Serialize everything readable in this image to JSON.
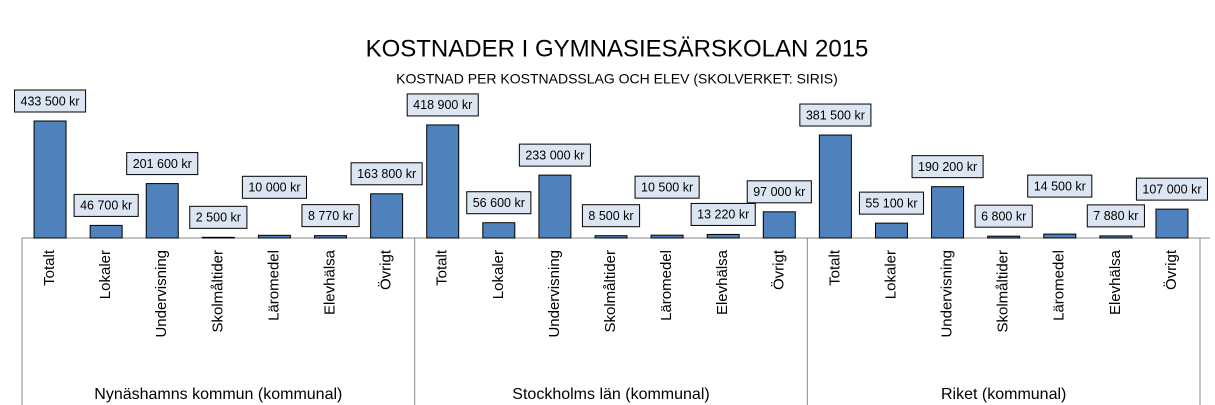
{
  "chart_data": {
    "type": "bar",
    "title": "KOSTNADER I GYMNASIESÄRSKOLAN 2015",
    "subtitle": "KOSTNAD PER KOSTNADSSLAG OCH ELEV (SKOLVERKET: SIRIS)",
    "color": "#4f81bd",
    "groups": [
      {
        "name": "Nynäshamns kommun (kommunal)",
        "categories": [
          "Totalt",
          "Lokaler",
          "Undervisning",
          "Skolmåltider",
          "Läromedel",
          "Elevhälsa",
          "Övrigt"
        ],
        "values": [
          433500,
          46700,
          201600,
          2500,
          10000,
          8770,
          163800
        ],
        "value_labels": [
          "433 500 kr",
          "46 700 kr",
          "201 600 kr",
          "2 500 kr",
          "10 000 kr",
          "8 770 kr",
          "163 800 kr"
        ]
      },
      {
        "name": "Stockholms län (kommunal)",
        "categories": [
          "Totalt",
          "Lokaler",
          "Undervisning",
          "Skolmåltider",
          "Läromedel",
          "Elevhälsa",
          "Övrigt"
        ],
        "values": [
          418900,
          56600,
          233000,
          8500,
          10500,
          13220,
          97000
        ],
        "value_labels": [
          "418 900 kr",
          "56 600 kr",
          "233 000 kr",
          "8 500 kr",
          "10 500 kr",
          "13 220 kr",
          "97 000 kr"
        ]
      },
      {
        "name": "Riket (kommunal)",
        "categories": [
          "Totalt",
          "Lokaler",
          "Undervisning",
          "Skolmåltider",
          "Läromedel",
          "Elevhälsa",
          "Övrigt"
        ],
        "values": [
          381500,
          55100,
          190200,
          6800,
          14500,
          7880,
          107000
        ],
        "value_labels": [
          "381 500 kr",
          "55 100 kr",
          "190 200 kr",
          "6 800 kr",
          "14 500 kr",
          "7 880 kr",
          "107 000 kr"
        ]
      }
    ]
  }
}
